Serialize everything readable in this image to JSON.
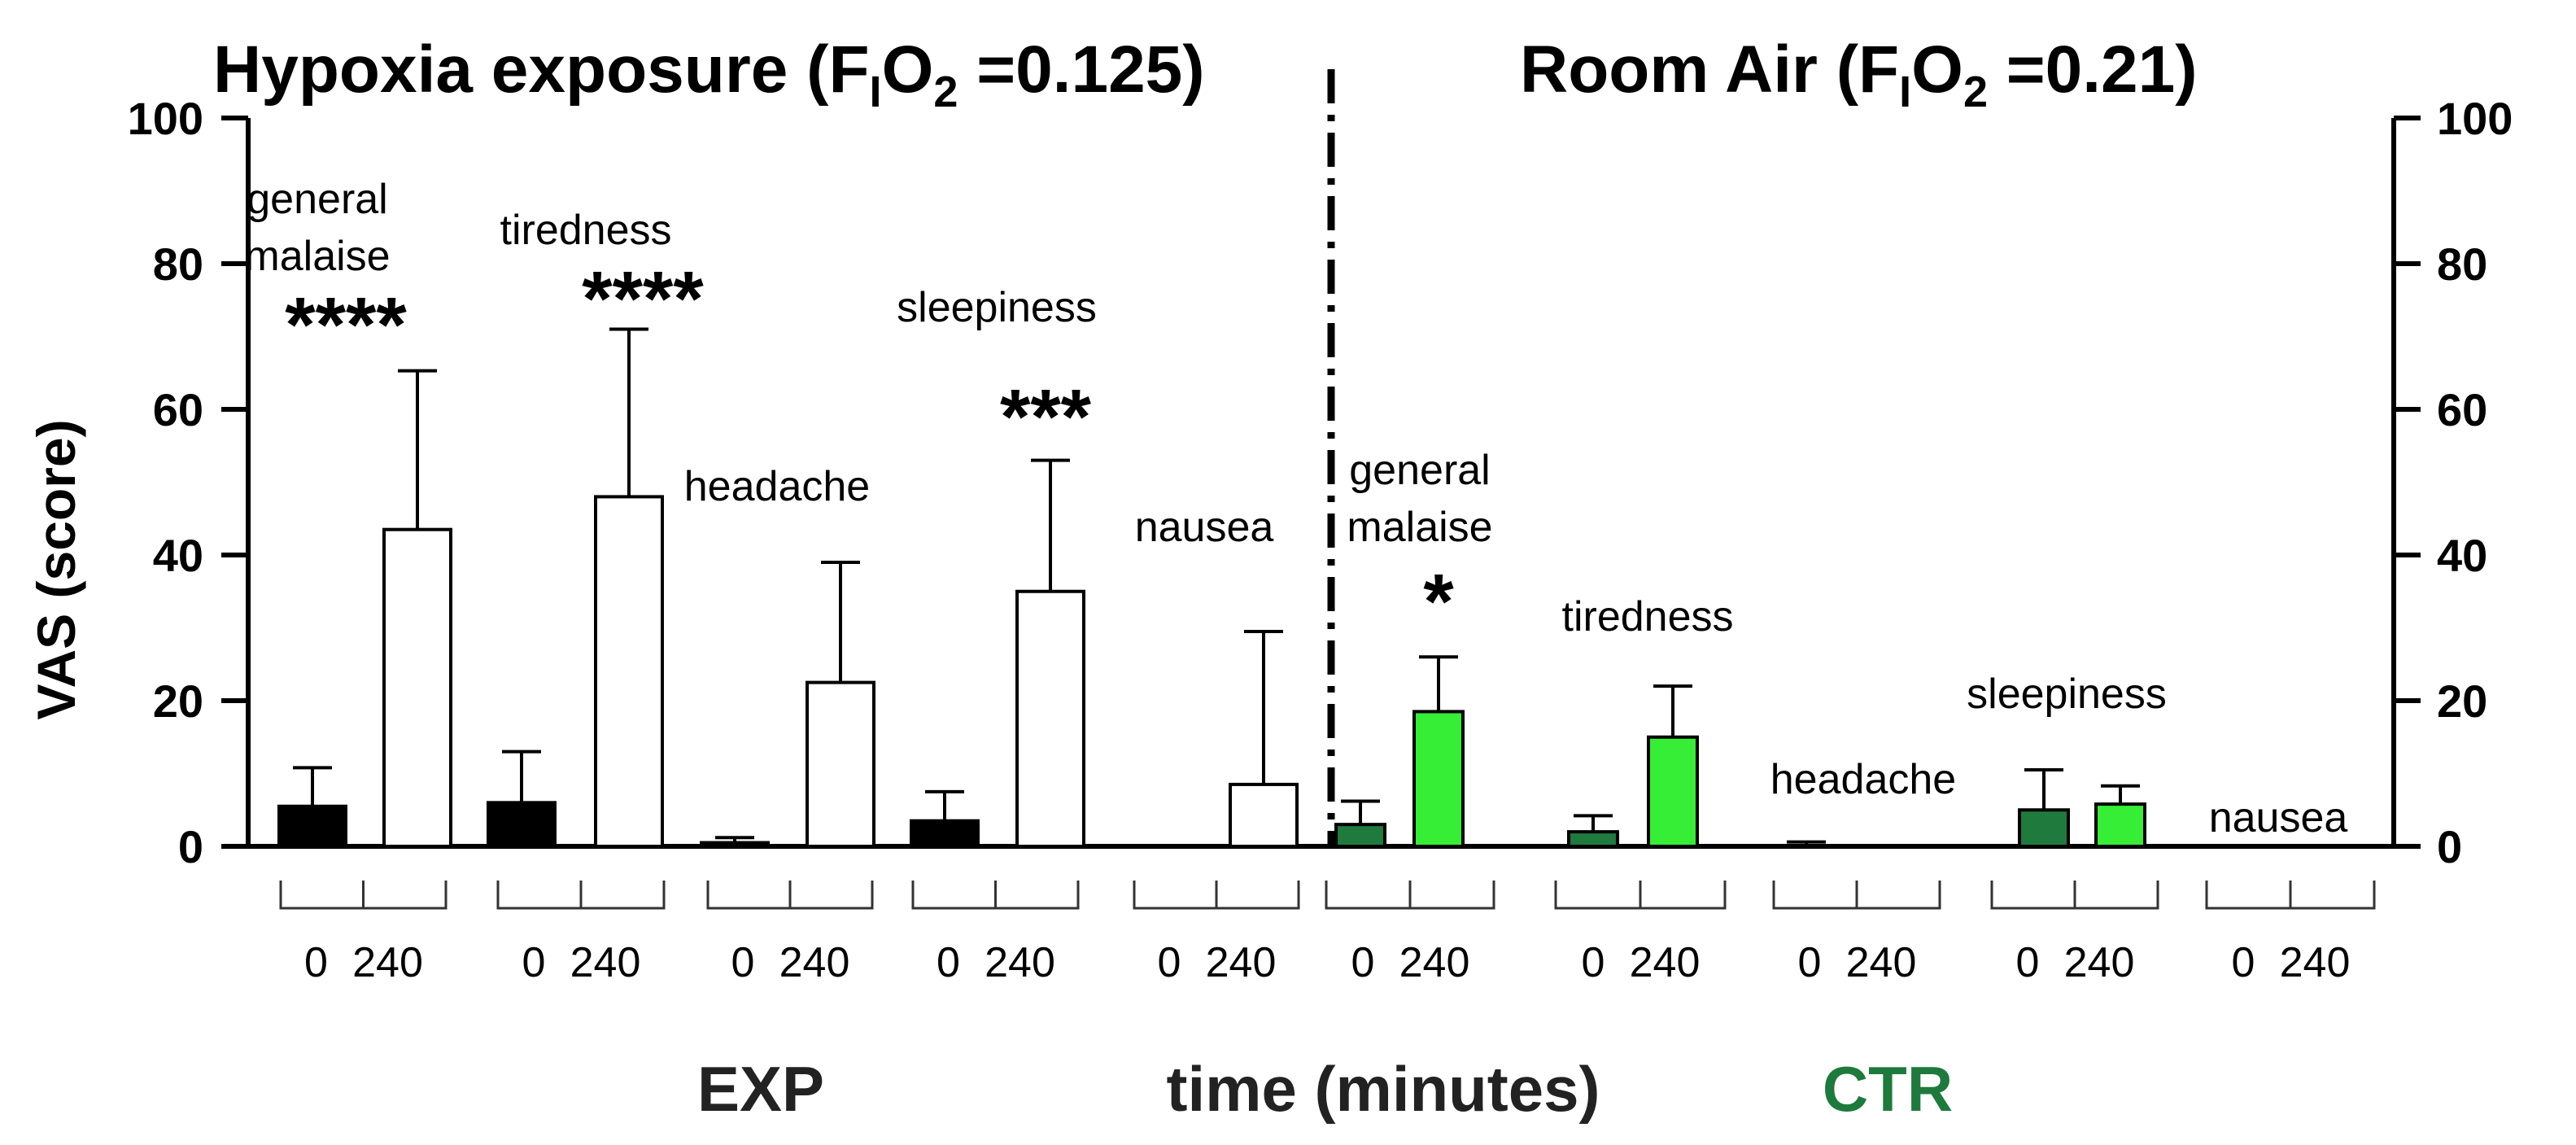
{
  "chart_data": {
    "type": "bar",
    "title_left": {
      "main": "Hypoxia exposure (F",
      "sub1": "I",
      "mid": "O",
      "sub2": "2",
      "end": " =0.125)"
    },
    "title_right": {
      "main": "Room Air (F",
      "sub1": "I",
      "mid": "O",
      "sub2": "2",
      "end": " =0.21)"
    },
    "ylabel": "VAS (score)",
    "xlabel": "time (minutes)",
    "ylim": [
      0,
      100
    ],
    "yticks": [
      "0",
      "20",
      "40",
      "60",
      "80",
      "100"
    ],
    "group_labels": {
      "exp": "EXP",
      "ctr": "CTR"
    },
    "time_labels": [
      "0",
      "240"
    ],
    "legend": "none",
    "groups": [
      {
        "symptom": "general malaise",
        "condition": "EXP",
        "significance": "****",
        "values": [
          5.5,
          43.5
        ],
        "error_upper": [
          10.8,
          65.3
        ]
      },
      {
        "symptom": "tiredness",
        "condition": "EXP",
        "significance": "****",
        "values": [
          6.0,
          48.0
        ],
        "error_upper": [
          13.0,
          71.0
        ]
      },
      {
        "symptom": "headache",
        "condition": "EXP",
        "significance": "",
        "values": [
          0.5,
          22.5
        ],
        "error_upper": [
          1.2,
          39.0
        ]
      },
      {
        "symptom": "sleepiness",
        "condition": "EXP",
        "significance": "***",
        "values": [
          3.5,
          35.0
        ],
        "error_upper": [
          7.5,
          53.0
        ]
      },
      {
        "symptom": "nausea",
        "condition": "EXP",
        "significance": "",
        "values": [
          0,
          8.5
        ],
        "error_upper": [
          0,
          29.5
        ]
      },
      {
        "symptom": "general malaise",
        "condition": "CTR",
        "significance": "*",
        "values": [
          3.0,
          18.5
        ],
        "error_upper": [
          6.2,
          26.0
        ]
      },
      {
        "symptom": "tiredness",
        "condition": "CTR",
        "significance": "",
        "values": [
          2.0,
          15.0
        ],
        "error_upper": [
          4.2,
          22.0
        ]
      },
      {
        "symptom": "headache",
        "condition": "CTR",
        "significance": "",
        "values": [
          0,
          0
        ],
        "error_upper": [
          0.6,
          0
        ]
      },
      {
        "symptom": "sleepiness",
        "condition": "CTR",
        "significance": "",
        "values": [
          5.0,
          5.8
        ],
        "error_upper": [
          10.5,
          8.3
        ]
      },
      {
        "symptom": "nausea",
        "condition": "CTR",
        "significance": "",
        "values": [
          0,
          0
        ],
        "error_upper": [
          0,
          0
        ]
      }
    ],
    "colors": {
      "exp_0": "#000000",
      "exp_240": "#ffffff",
      "ctr_0": "#1f7a3e",
      "ctr_240": "#35ee35",
      "ctr_label": "#1e7a3c",
      "axis": "#000000"
    }
  }
}
